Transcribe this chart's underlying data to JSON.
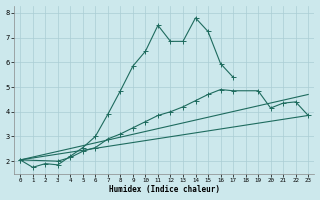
{
  "xlabel": "Humidex (Indice chaleur)",
  "bg_color": "#cce8ec",
  "grid_color": "#aacdd4",
  "line_color": "#1e6b5e",
  "xlim": [
    -0.5,
    23.5
  ],
  "ylim": [
    1.5,
    8.3
  ],
  "line1_x": [
    0,
    1,
    2,
    3,
    4,
    5,
    6,
    7,
    8,
    9,
    10,
    11,
    12,
    13,
    14,
    15,
    16,
    17
  ],
  "line1_y": [
    2.05,
    1.75,
    1.9,
    1.85,
    2.2,
    2.55,
    3.0,
    3.9,
    4.85,
    5.85,
    6.45,
    7.5,
    6.85,
    6.85,
    7.8,
    7.25,
    5.95,
    5.4
  ],
  "line2_x": [
    0,
    3,
    4,
    5,
    6,
    7,
    8,
    9,
    10,
    11,
    12,
    13,
    14,
    15,
    16,
    17,
    19,
    20,
    21,
    22,
    23
  ],
  "line2_y": [
    2.05,
    2.0,
    2.15,
    2.4,
    2.55,
    2.9,
    3.1,
    3.35,
    3.6,
    3.85,
    4.0,
    4.2,
    4.45,
    4.7,
    4.9,
    4.85,
    4.85,
    4.15,
    4.35,
    4.4,
    3.85
  ],
  "line3_x": [
    0,
    23
  ],
  "line3_y": [
    2.05,
    3.85
  ],
  "line4_x": [
    0,
    23
  ],
  "line4_y": [
    2.05,
    4.7
  ],
  "xtick_positions": [
    0,
    1,
    2,
    3,
    4,
    5,
    6,
    7,
    8,
    9,
    10,
    11,
    12,
    13,
    14,
    15,
    16,
    17,
    18,
    19,
    20,
    21,
    22,
    23
  ],
  "xtick_labels": [
    "0",
    "1",
    "2",
    "3",
    "4",
    "5",
    "6",
    "7",
    "8",
    "9",
    "10",
    "11",
    "12",
    "13",
    "14",
    "15",
    "16",
    "17",
    "18",
    "19",
    "20",
    "21",
    "22",
    "23"
  ],
  "ytick_positions": [
    2,
    3,
    4,
    5,
    6,
    7,
    8
  ],
  "ytick_labels": [
    "2",
    "3",
    "4",
    "5",
    "6",
    "7",
    "8"
  ]
}
